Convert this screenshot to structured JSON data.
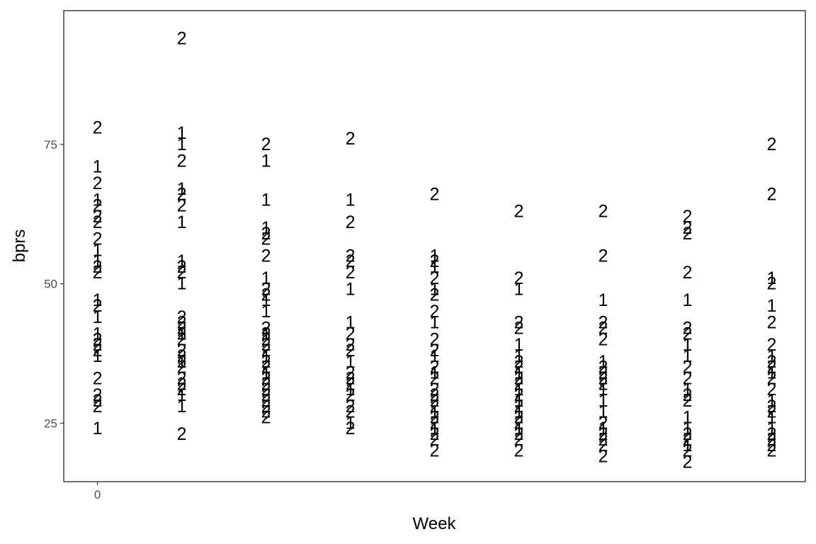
{
  "chart_data": {
    "type": "scatter",
    "title": "",
    "xlabel": "Week",
    "ylabel": "bprs",
    "x_ticks": [
      {
        "value": 0,
        "label": "0"
      }
    ],
    "y_ticks": [
      {
        "value": 25,
        "label": "25"
      },
      {
        "value": 50,
        "label": "50"
      },
      {
        "value": 75,
        "label": "75"
      }
    ],
    "xlim": [
      -0.4,
      8.4
    ],
    "ylim": [
      14.5,
      99
    ],
    "grid": false,
    "marker": "treatment group number drawn as text label",
    "series": [
      {
        "name": "1",
        "points": [
          {
            "x": 0,
            "y": 71
          },
          {
            "x": 0,
            "y": 65
          },
          {
            "x": 0,
            "y": 56
          },
          {
            "x": 0,
            "y": 54
          },
          {
            "x": 0,
            "y": 47
          },
          {
            "x": 0,
            "y": 44
          },
          {
            "x": 0,
            "y": 41
          },
          {
            "x": 0,
            "y": 37
          },
          {
            "x": 0,
            "y": 24
          },
          {
            "x": 1,
            "y": 77
          },
          {
            "x": 1,
            "y": 75
          },
          {
            "x": 1,
            "y": 67
          },
          {
            "x": 1,
            "y": 61
          },
          {
            "x": 1,
            "y": 54
          },
          {
            "x": 1,
            "y": 50
          },
          {
            "x": 1,
            "y": 41
          },
          {
            "x": 1,
            "y": 36
          },
          {
            "x": 1,
            "y": 30
          },
          {
            "x": 1,
            "y": 28
          },
          {
            "x": 2,
            "y": 72
          },
          {
            "x": 2,
            "y": 65
          },
          {
            "x": 2,
            "y": 60
          },
          {
            "x": 2,
            "y": 51
          },
          {
            "x": 2,
            "y": 47
          },
          {
            "x": 2,
            "y": 45
          },
          {
            "x": 2,
            "y": 41
          },
          {
            "x": 2,
            "y": 37
          },
          {
            "x": 2,
            "y": 34
          },
          {
            "x": 3,
            "y": 65
          },
          {
            "x": 3,
            "y": 49
          },
          {
            "x": 3,
            "y": 43
          },
          {
            "x": 3,
            "y": 36
          },
          {
            "x": 3,
            "y": 31
          },
          {
            "x": 3,
            "y": 25
          },
          {
            "x": 4,
            "y": 55
          },
          {
            "x": 4,
            "y": 53
          },
          {
            "x": 4,
            "y": 49
          },
          {
            "x": 4,
            "y": 43
          },
          {
            "x": 4,
            "y": 37
          },
          {
            "x": 4,
            "y": 34
          },
          {
            "x": 4,
            "y": 27
          },
          {
            "x": 4,
            "y": 24
          },
          {
            "x": 5,
            "y": 49
          },
          {
            "x": 5,
            "y": 39
          },
          {
            "x": 5,
            "y": 37
          },
          {
            "x": 5,
            "y": 34
          },
          {
            "x": 5,
            "y": 31
          },
          {
            "x": 5,
            "y": 29
          },
          {
            "x": 5,
            "y": 27
          },
          {
            "x": 5,
            "y": 24
          },
          {
            "x": 6,
            "y": 47
          },
          {
            "x": 6,
            "y": 36
          },
          {
            "x": 6,
            "y": 31
          },
          {
            "x": 6,
            "y": 29
          },
          {
            "x": 6,
            "y": 27
          },
          {
            "x": 6,
            "y": 24
          },
          {
            "x": 7,
            "y": 47
          },
          {
            "x": 7,
            "y": 39
          },
          {
            "x": 7,
            "y": 37
          },
          {
            "x": 7,
            "y": 31
          },
          {
            "x": 7,
            "y": 26
          },
          {
            "x": 7,
            "y": 24
          },
          {
            "x": 7,
            "y": 21
          },
          {
            "x": 8,
            "y": 51
          },
          {
            "x": 8,
            "y": 46
          },
          {
            "x": 8,
            "y": 37
          },
          {
            "x": 8,
            "y": 34
          },
          {
            "x": 8,
            "y": 29
          },
          {
            "x": 8,
            "y": 26
          },
          {
            "x": 8,
            "y": 24
          }
        ]
      },
      {
        "name": "2",
        "points": [
          {
            "x": 0,
            "y": 78
          },
          {
            "x": 0,
            "y": 68
          },
          {
            "x": 0,
            "y": 64
          },
          {
            "x": 0,
            "y": 62
          },
          {
            "x": 0,
            "y": 61
          },
          {
            "x": 0,
            "y": 58
          },
          {
            "x": 0,
            "y": 53
          },
          {
            "x": 0,
            "y": 52
          },
          {
            "x": 0,
            "y": 46
          },
          {
            "x": 0,
            "y": 40
          },
          {
            "x": 0,
            "y": 39
          },
          {
            "x": 0,
            "y": 38
          },
          {
            "x": 0,
            "y": 33
          },
          {
            "x": 0,
            "y": 30
          },
          {
            "x": 0,
            "y": 29
          },
          {
            "x": 0,
            "y": 28
          },
          {
            "x": 1,
            "y": 94
          },
          {
            "x": 1,
            "y": 72
          },
          {
            "x": 1,
            "y": 66
          },
          {
            "x": 1,
            "y": 64
          },
          {
            "x": 1,
            "y": 53
          },
          {
            "x": 1,
            "y": 52
          },
          {
            "x": 1,
            "y": 44
          },
          {
            "x": 1,
            "y": 43
          },
          {
            "x": 1,
            "y": 42
          },
          {
            "x": 1,
            "y": 41
          },
          {
            "x": 1,
            "y": 40
          },
          {
            "x": 1,
            "y": 38
          },
          {
            "x": 1,
            "y": 37
          },
          {
            "x": 1,
            "y": 36
          },
          {
            "x": 1,
            "y": 35
          },
          {
            "x": 1,
            "y": 33
          },
          {
            "x": 1,
            "y": 32
          },
          {
            "x": 1,
            "y": 31
          },
          {
            "x": 1,
            "y": 23
          },
          {
            "x": 2,
            "y": 75
          },
          {
            "x": 2,
            "y": 59
          },
          {
            "x": 2,
            "y": 58
          },
          {
            "x": 2,
            "y": 55
          },
          {
            "x": 2,
            "y": 49
          },
          {
            "x": 2,
            "y": 48
          },
          {
            "x": 2,
            "y": 42
          },
          {
            "x": 2,
            "y": 41
          },
          {
            "x": 2,
            "y": 40
          },
          {
            "x": 2,
            "y": 39
          },
          {
            "x": 2,
            "y": 38
          },
          {
            "x": 2,
            "y": 36
          },
          {
            "x": 2,
            "y": 35
          },
          {
            "x": 2,
            "y": 33
          },
          {
            "x": 2,
            "y": 32
          },
          {
            "x": 2,
            "y": 31
          },
          {
            "x": 2,
            "y": 30
          },
          {
            "x": 2,
            "y": 29
          },
          {
            "x": 2,
            "y": 28
          },
          {
            "x": 2,
            "y": 27
          },
          {
            "x": 2,
            "y": 26
          },
          {
            "x": 3,
            "y": 76
          },
          {
            "x": 3,
            "y": 61
          },
          {
            "x": 3,
            "y": 55
          },
          {
            "x": 3,
            "y": 54
          },
          {
            "x": 3,
            "y": 52
          },
          {
            "x": 3,
            "y": 41
          },
          {
            "x": 3,
            "y": 39
          },
          {
            "x": 3,
            "y": 38
          },
          {
            "x": 3,
            "y": 34
          },
          {
            "x": 3,
            "y": 33
          },
          {
            "x": 3,
            "y": 32
          },
          {
            "x": 3,
            "y": 30
          },
          {
            "x": 3,
            "y": 28
          },
          {
            "x": 3,
            "y": 27
          },
          {
            "x": 3,
            "y": 24
          },
          {
            "x": 4,
            "y": 66
          },
          {
            "x": 4,
            "y": 54
          },
          {
            "x": 4,
            "y": 51
          },
          {
            "x": 4,
            "y": 48
          },
          {
            "x": 4,
            "y": 45
          },
          {
            "x": 4,
            "y": 40
          },
          {
            "x": 4,
            "y": 38
          },
          {
            "x": 4,
            "y": 35
          },
          {
            "x": 4,
            "y": 33
          },
          {
            "x": 4,
            "y": 31
          },
          {
            "x": 4,
            "y": 30
          },
          {
            "x": 4,
            "y": 29
          },
          {
            "x": 4,
            "y": 28
          },
          {
            "x": 4,
            "y": 26
          },
          {
            "x": 4,
            "y": 25
          },
          {
            "x": 4,
            "y": 23
          },
          {
            "x": 4,
            "y": 22
          },
          {
            "x": 4,
            "y": 20
          },
          {
            "x": 5,
            "y": 63
          },
          {
            "x": 5,
            "y": 51
          },
          {
            "x": 5,
            "y": 43
          },
          {
            "x": 5,
            "y": 42
          },
          {
            "x": 5,
            "y": 36
          },
          {
            "x": 5,
            "y": 35
          },
          {
            "x": 5,
            "y": 33
          },
          {
            "x": 5,
            "y": 32
          },
          {
            "x": 5,
            "y": 30
          },
          {
            "x": 5,
            "y": 28
          },
          {
            "x": 5,
            "y": 26
          },
          {
            "x": 5,
            "y": 25
          },
          {
            "x": 5,
            "y": 23
          },
          {
            "x": 5,
            "y": 22
          },
          {
            "x": 5,
            "y": 20
          },
          {
            "x": 6,
            "y": 63
          },
          {
            "x": 6,
            "y": 55
          },
          {
            "x": 6,
            "y": 43
          },
          {
            "x": 6,
            "y": 42
          },
          {
            "x": 6,
            "y": 40
          },
          {
            "x": 6,
            "y": 35
          },
          {
            "x": 6,
            "y": 34
          },
          {
            "x": 6,
            "y": 33
          },
          {
            "x": 6,
            "y": 32
          },
          {
            "x": 6,
            "y": 25
          },
          {
            "x": 6,
            "y": 23
          },
          {
            "x": 6,
            "y": 22
          },
          {
            "x": 6,
            "y": 21
          },
          {
            "x": 6,
            "y": 19
          },
          {
            "x": 7,
            "y": 62
          },
          {
            "x": 7,
            "y": 60
          },
          {
            "x": 7,
            "y": 59
          },
          {
            "x": 7,
            "y": 52
          },
          {
            "x": 7,
            "y": 42
          },
          {
            "x": 7,
            "y": 41
          },
          {
            "x": 7,
            "y": 35
          },
          {
            "x": 7,
            "y": 33
          },
          {
            "x": 7,
            "y": 30
          },
          {
            "x": 7,
            "y": 29
          },
          {
            "x": 7,
            "y": 23
          },
          {
            "x": 7,
            "y": 22
          },
          {
            "x": 7,
            "y": 20
          },
          {
            "x": 7,
            "y": 18
          },
          {
            "x": 8,
            "y": 75
          },
          {
            "x": 8,
            "y": 66
          },
          {
            "x": 8,
            "y": 50
          },
          {
            "x": 8,
            "y": 43
          },
          {
            "x": 8,
            "y": 39
          },
          {
            "x": 8,
            "y": 36
          },
          {
            "x": 8,
            "y": 35
          },
          {
            "x": 8,
            "y": 33
          },
          {
            "x": 8,
            "y": 31
          },
          {
            "x": 8,
            "y": 28
          },
          {
            "x": 8,
            "y": 27
          },
          {
            "x": 8,
            "y": 23
          },
          {
            "x": 8,
            "y": 22
          },
          {
            "x": 8,
            "y": 21
          },
          {
            "x": 8,
            "y": 20
          }
        ]
      }
    ]
  }
}
